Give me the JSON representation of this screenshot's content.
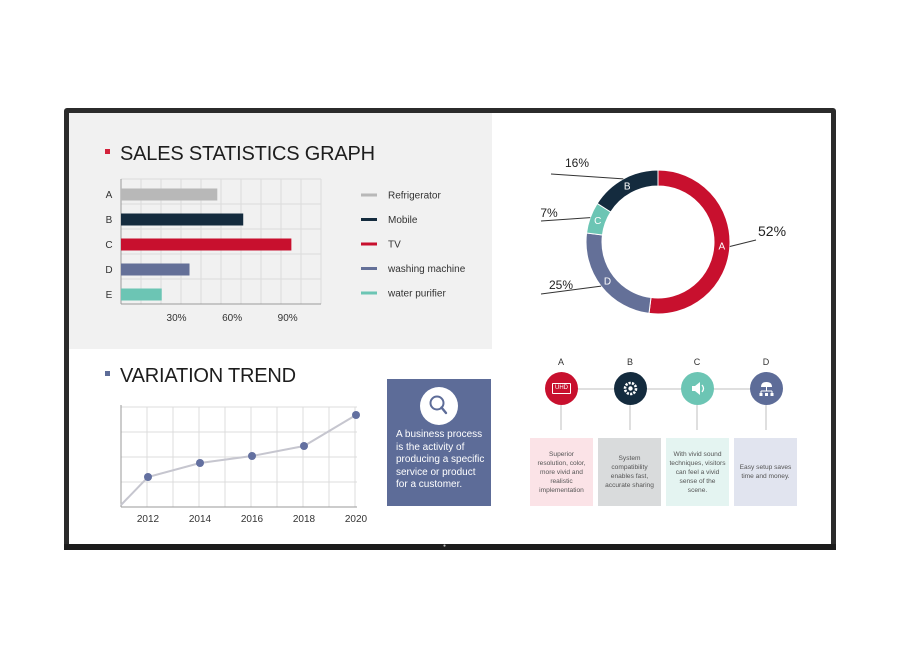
{
  "colors": {
    "refrigerator": "#b8b8b8",
    "mobile": "#142b3e",
    "tv": "#c8102e",
    "washing_machine": "#647098",
    "water_purifier": "#6cc5b4",
    "title_bullet_red": "#d3223b",
    "title_bullet_blue": "#5d6c98",
    "trend_line": "#c6c6cf",
    "trend_point": "#6370a0"
  },
  "sales_chart": {
    "title": "SALES STATISTICS GRAPH",
    "legend": [
      "Refrigerator",
      "Mobile",
      "TV",
      "washing machine",
      "water purifier"
    ]
  },
  "trend_chart": {
    "title": "VARIATION TREND"
  },
  "description_card": {
    "icon": "search-icon",
    "text": "A business process is the activity of producing a specific service or product for a customer."
  },
  "features": [
    {
      "label": "A",
      "icon": "uhd-icon",
      "icon_text": "UHD",
      "color": "#c8102e",
      "box_color": "#fbe3e7",
      "text": "Superior resolution, color, more vivid and realistic implementation"
    },
    {
      "label": "B",
      "icon": "gear-icon",
      "color": "#142b3e",
      "box_color": "#d9dbdc",
      "text": "System compatibility enables fast, accurate sharing"
    },
    {
      "label": "C",
      "icon": "speaker-icon",
      "color": "#6cc5b4",
      "box_color": "#e4f4f1",
      "text": "With vivid sound techniques, visitors can feel a vivid sense of the scene."
    },
    {
      "label": "D",
      "icon": "network-icon",
      "color": "#5d6c98",
      "box_color": "#e1e4ef",
      "text": "Easy setup saves time and money."
    }
  ],
  "chart_data": [
    {
      "type": "bar",
      "orientation": "horizontal",
      "title": "SALES STATISTICS GRAPH",
      "categories": [
        "A",
        "B",
        "C",
        "D",
        "E"
      ],
      "values": [
        52,
        66,
        92,
        37,
        22
      ],
      "series_names": [
        "Refrigerator",
        "Mobile",
        "TV",
        "washing machine",
        "water purifier"
      ],
      "x_ticks": [
        "30%",
        "60%",
        "90%"
      ],
      "x_tick_values": [
        30,
        60,
        90
      ],
      "xlim": [
        0,
        108
      ],
      "grid": true,
      "legend_position": "right"
    },
    {
      "type": "pie",
      "style": "donut",
      "slices": [
        {
          "label": "A",
          "value": 52,
          "value_label": "52%"
        },
        {
          "label": "D",
          "value": 25,
          "value_label": "25%"
        },
        {
          "label": "C",
          "value": 7,
          "value_label": "7%"
        },
        {
          "label": "B",
          "value": 16,
          "value_label": "16%"
        }
      ]
    },
    {
      "type": "line",
      "title": "VARIATION TREND",
      "x": [
        2012,
        2014,
        2016,
        2018,
        2020
      ],
      "x_ticks": [
        "2012",
        "2014",
        "2016",
        "2018",
        "2020"
      ],
      "y": [
        0.3,
        0.44,
        0.51,
        0.61,
        0.92
      ],
      "ylim": [
        0,
        1
      ],
      "grid": true
    }
  ]
}
